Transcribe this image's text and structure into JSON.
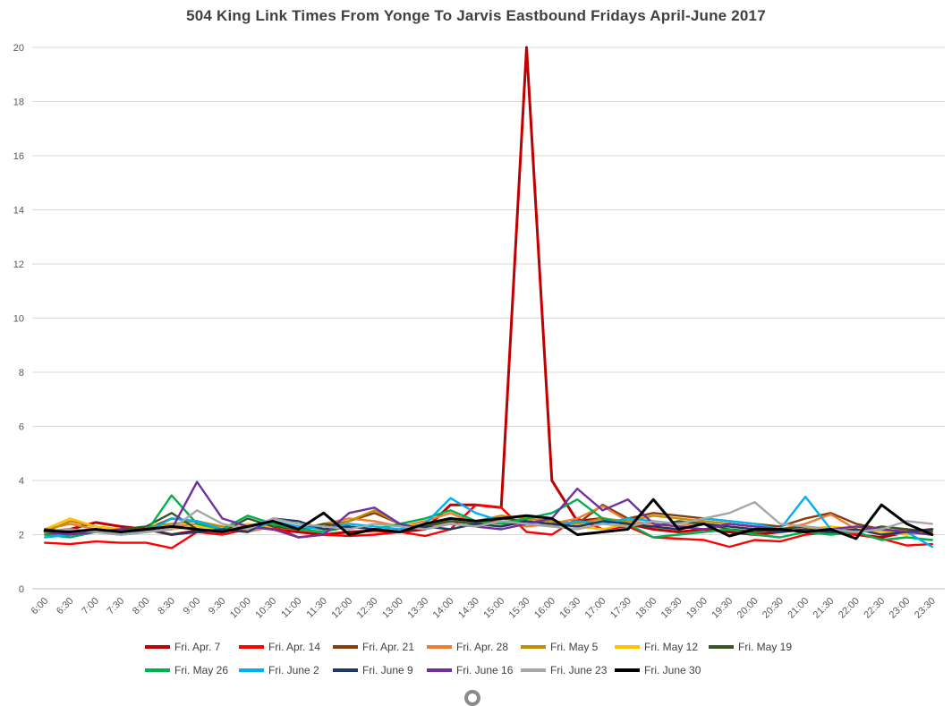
{
  "chart_data": {
    "type": "line",
    "title": "504 King Link Times From Yonge To Jarvis Eastbound Fridays April-June 2017",
    "xlabel": "",
    "ylabel": "",
    "ylim": [
      0,
      20
    ],
    "ytick_step": 2,
    "grid": "horizontal",
    "legend_position": "bottom",
    "categories": [
      "6:00",
      "6:30",
      "7:00",
      "7:30",
      "8:00",
      "8:30",
      "9:00",
      "9:30",
      "10:00",
      "10:30",
      "11:00",
      "11:30",
      "12:00",
      "12:30",
      "13:00",
      "13:30",
      "14:00",
      "14:30",
      "15:00",
      "15:30",
      "16:00",
      "16:30",
      "17:00",
      "17:30",
      "18:00",
      "18:30",
      "19:00",
      "19:30",
      "20:00",
      "20:30",
      "21:00",
      "21:30",
      "22:00",
      "22:30",
      "23:00",
      "23:30"
    ],
    "series": [
      {
        "name": "Fri. Apr. 7",
        "color": "#C00000",
        "values": [
          2.1,
          2.2,
          2.45,
          2.3,
          2.2,
          2.0,
          2.15,
          2.2,
          2.3,
          2.2,
          2.1,
          2.0,
          2.1,
          2.15,
          2.1,
          2.2,
          3.1,
          3.1,
          3.0,
          20,
          4.0,
          2.5,
          2.6,
          2.4,
          2.2,
          2.1,
          2.2,
          2.1,
          2.0,
          2.1,
          2.2,
          2.1,
          2.0,
          1.9,
          2.1,
          2.2
        ]
      },
      {
        "name": "Fri. Apr. 14",
        "color": "#FF0000",
        "values": [
          1.7,
          1.65,
          1.75,
          1.7,
          1.7,
          1.5,
          2.1,
          2.0,
          2.2,
          2.3,
          1.9,
          2.0,
          1.95,
          2.0,
          2.1,
          1.95,
          2.2,
          3.1,
          3.0,
          2.1,
          2.0,
          2.6,
          2.2,
          2.3,
          1.9,
          1.85,
          1.8,
          1.55,
          1.8,
          1.75,
          2.0,
          2.1,
          2.0,
          1.85,
          1.6,
          1.65
        ]
      },
      {
        "name": "Fri. Apr. 21",
        "color": "#843C0C",
        "values": [
          2.0,
          2.1,
          2.2,
          2.1,
          2.2,
          2.6,
          2.5,
          2.2,
          2.3,
          2.4,
          2.2,
          2.3,
          2.5,
          2.8,
          2.4,
          2.3,
          2.5,
          2.4,
          2.3,
          2.6,
          2.5,
          2.4,
          3.1,
          2.6,
          2.8,
          2.7,
          2.6,
          2.5,
          2.4,
          2.3,
          2.6,
          2.8,
          2.4,
          2.2,
          2.1,
          2.0
        ]
      },
      {
        "name": "Fri. Apr. 28",
        "color": "#ED7D31",
        "values": [
          2.2,
          2.4,
          2.2,
          2.1,
          2.2,
          2.3,
          2.4,
          2.2,
          2.1,
          2.3,
          2.2,
          2.4,
          2.6,
          2.5,
          2.3,
          2.5,
          2.8,
          2.4,
          2.5,
          2.3,
          2.4,
          2.6,
          3.05,
          2.5,
          2.4,
          2.3,
          2.5,
          2.4,
          2.3,
          2.2,
          2.4,
          2.75,
          2.2,
          2.1,
          2.2,
          2.1
        ]
      },
      {
        "name": "Fri. May 5",
        "color": "#BF8F00",
        "values": [
          2.1,
          2.5,
          2.3,
          2.2,
          2.3,
          2.4,
          2.5,
          2.3,
          2.2,
          2.4,
          2.3,
          2.2,
          2.5,
          2.9,
          2.4,
          2.3,
          2.6,
          2.5,
          2.7,
          2.6,
          2.5,
          2.4,
          2.6,
          2.5,
          2.7,
          2.6,
          2.5,
          2.4,
          2.3,
          2.2,
          2.1,
          2.2,
          2.3,
          2.2,
          2.1,
          2.2
        ]
      },
      {
        "name": "Fri. May 12",
        "color": "#FFC000",
        "values": [
          2.2,
          2.6,
          2.3,
          2.2,
          2.1,
          2.2,
          2.3,
          2.2,
          2.4,
          2.3,
          2.2,
          2.1,
          2.3,
          2.2,
          2.4,
          2.3,
          2.5,
          2.4,
          2.3,
          2.5,
          2.4,
          2.3,
          2.2,
          2.4,
          2.3,
          2.2,
          2.4,
          2.3,
          2.2,
          2.1,
          2.2,
          2.3,
          2.2,
          2.1,
          2.0,
          2.1
        ]
      },
      {
        "name": "Fri. May 19",
        "color": "#375623",
        "values": [
          2.1,
          2.2,
          2.1,
          2.2,
          2.3,
          2.8,
          2.2,
          2.1,
          2.6,
          2.3,
          2.2,
          2.4,
          2.3,
          2.2,
          2.1,
          2.3,
          2.5,
          2.4,
          2.6,
          2.5,
          2.4,
          2.3,
          2.5,
          2.4,
          2.3,
          2.5,
          2.4,
          2.2,
          2.1,
          2.2,
          2.3,
          2.2,
          2.1,
          2.3,
          2.2,
          2.1
        ]
      },
      {
        "name": "Fri. May 26",
        "color": "#00B050",
        "values": [
          2.0,
          1.9,
          2.1,
          2.0,
          2.1,
          3.45,
          2.4,
          2.2,
          2.7,
          2.4,
          2.2,
          2.1,
          2.3,
          2.2,
          2.4,
          2.6,
          2.9,
          2.5,
          2.4,
          2.6,
          2.8,
          3.3,
          2.6,
          2.4,
          1.9,
          2.0,
          2.1,
          2.2,
          2.0,
          1.9,
          2.1,
          2.0,
          2.1,
          1.8,
          1.9,
          1.8
        ]
      },
      {
        "name": "Fri. June 2",
        "color": "#00B0F0",
        "values": [
          1.9,
          2.0,
          2.1,
          2.0,
          2.1,
          2.6,
          2.5,
          2.2,
          2.1,
          2.5,
          2.3,
          2.2,
          2.4,
          2.3,
          2.2,
          2.4,
          3.35,
          2.8,
          2.5,
          2.4,
          2.3,
          2.5,
          2.4,
          2.6,
          2.5,
          2.4,
          2.6,
          2.5,
          2.4,
          2.2,
          3.4,
          2.2,
          2.1,
          2.2,
          2.1,
          1.55
        ]
      },
      {
        "name": "Fri. June 9",
        "color": "#1F3864",
        "values": [
          2.2,
          2.1,
          2.2,
          2.1,
          2.2,
          2.0,
          2.1,
          2.2,
          2.1,
          2.6,
          2.5,
          2.2,
          2.3,
          2.2,
          2.1,
          2.3,
          2.2,
          2.4,
          2.3,
          2.5,
          2.4,
          2.3,
          2.5,
          2.4,
          2.3,
          2.2,
          2.4,
          2.3,
          2.2,
          2.1,
          2.2,
          2.1,
          2.2,
          2.0,
          2.1,
          2.2
        ]
      },
      {
        "name": "Fri. June 16",
        "color": "#7030A0",
        "values": [
          2.1,
          2.0,
          2.1,
          2.2,
          2.1,
          2.2,
          3.95,
          2.6,
          2.3,
          2.2,
          1.9,
          2.0,
          2.8,
          3.0,
          2.4,
          2.2,
          2.4,
          2.3,
          2.2,
          2.4,
          2.6,
          3.7,
          2.9,
          3.3,
          2.4,
          2.3,
          2.2,
          2.4,
          2.3,
          2.2,
          2.1,
          2.2,
          2.3,
          2.2,
          2.1,
          2.0
        ]
      },
      {
        "name": "Fri. June 23",
        "color": "#A6A6A6",
        "values": [
          2.1,
          2.2,
          2.1,
          2.0,
          2.1,
          2.2,
          2.9,
          2.4,
          2.2,
          2.6,
          2.4,
          2.3,
          2.2,
          2.4,
          2.3,
          2.2,
          2.4,
          2.3,
          2.5,
          2.4,
          2.3,
          2.2,
          2.4,
          2.3,
          2.5,
          2.4,
          2.6,
          2.8,
          3.2,
          2.4,
          2.3,
          2.2,
          2.1,
          2.2,
          2.5,
          2.4
        ]
      },
      {
        "name": "Fri. June 30",
        "color": "#000000",
        "values": [
          2.15,
          2.1,
          2.2,
          2.1,
          2.2,
          2.3,
          2.2,
          2.1,
          2.3,
          2.5,
          2.2,
          2.8,
          2.0,
          2.2,
          2.1,
          2.4,
          2.6,
          2.5,
          2.6,
          2.7,
          2.6,
          2.0,
          2.1,
          2.2,
          3.3,
          2.2,
          2.4,
          1.95,
          2.2,
          2.2,
          2.1,
          2.2,
          1.85,
          3.1,
          2.4,
          2.0
        ]
      }
    ],
    "style": {
      "gridline_color": "#D9D9D9",
      "axis_line_color": "#BFBFBF",
      "tick_label_color": "#595959",
      "title_color": "#404040"
    }
  }
}
